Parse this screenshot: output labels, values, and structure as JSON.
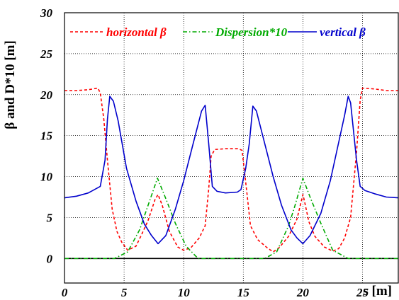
{
  "chart_data": {
    "type": "line",
    "xlabel": "s [m]",
    "ylabel": "β and D*10 [m]",
    "xlim": [
      0,
      28
    ],
    "ylim": [
      -3,
      30
    ],
    "x_ticks": [
      "0",
      "5",
      "10",
      "15",
      "20",
      "25"
    ],
    "y_ticks": [
      "0",
      "5",
      "10",
      "15",
      "20",
      "25",
      "30"
    ],
    "grid": true,
    "legend_position": "top",
    "series": [
      {
        "name": "horizontal β",
        "color": "#ff0000",
        "dash": "dashed",
        "points": [
          [
            0,
            20.5
          ],
          [
            1,
            20.5
          ],
          [
            2,
            20.6
          ],
          [
            2.8,
            20.8
          ],
          [
            3.0,
            20.2
          ],
          [
            3.3,
            17
          ],
          [
            3.6,
            12
          ],
          [
            4.0,
            6
          ],
          [
            4.4,
            3.3
          ],
          [
            4.8,
            2
          ],
          [
            5.3,
            1.0
          ],
          [
            6.0,
            1.5
          ],
          [
            6.5,
            3.0
          ],
          [
            7.0,
            4.6
          ],
          [
            7.6,
            7.2
          ],
          [
            7.85,
            7.8
          ],
          [
            8.2,
            6.5
          ],
          [
            8.8,
            3.3
          ],
          [
            9.5,
            1.4
          ],
          [
            10.0,
            1.0
          ],
          [
            10.6,
            1.3
          ],
          [
            11.3,
            2.5
          ],
          [
            11.8,
            4.0
          ],
          [
            12.1,
            8.5
          ],
          [
            12.3,
            12.5
          ],
          [
            12.6,
            13.3
          ],
          [
            13.5,
            13.4
          ],
          [
            14.6,
            13.4
          ],
          [
            14.9,
            13.2
          ],
          [
            15.3,
            8.0
          ],
          [
            15.6,
            4.0
          ],
          [
            16.2,
            2.3
          ],
          [
            17.0,
            1.3
          ],
          [
            17.5,
            0.8
          ],
          [
            18.0,
            1.3
          ],
          [
            18.8,
            2.7
          ],
          [
            19.5,
            4.8
          ],
          [
            20.0,
            7.8
          ],
          [
            20.1,
            7.2
          ],
          [
            20.5,
            4.5
          ],
          [
            21.0,
            2.7
          ],
          [
            21.8,
            1.4
          ],
          [
            22.5,
            0.9
          ],
          [
            23.0,
            1.2
          ],
          [
            23.5,
            2.5
          ],
          [
            24.0,
            5.0
          ],
          [
            24.5,
            13.0
          ],
          [
            24.8,
            19.3
          ],
          [
            25.0,
            20.8
          ],
          [
            26,
            20.7
          ],
          [
            27,
            20.5
          ],
          [
            28,
            20.5
          ]
        ]
      },
      {
        "name": "Dispersion*10",
        "color": "#00aa00",
        "dash": "dashdot",
        "points": [
          [
            0,
            0
          ],
          [
            4.2,
            0
          ],
          [
            5.3,
            0.8
          ],
          [
            6.3,
            3.5
          ],
          [
            7.8,
            9.8
          ],
          [
            8.5,
            7.3
          ],
          [
            9.3,
            4.3
          ],
          [
            10.2,
            1.5
          ],
          [
            11.2,
            0
          ],
          [
            16.8,
            0
          ],
          [
            17.8,
            0.8
          ],
          [
            18.8,
            4.0
          ],
          [
            19.3,
            6.3
          ],
          [
            20.0,
            9.8
          ],
          [
            20.6,
            7.5
          ],
          [
            21.5,
            4.3
          ],
          [
            22.5,
            1.0
          ],
          [
            23.8,
            0
          ],
          [
            28,
            0
          ]
        ]
      },
      {
        "name": "vertical β",
        "color": "#0000cc",
        "dash": "solid",
        "points": [
          [
            0,
            7.4
          ],
          [
            1,
            7.6
          ],
          [
            2,
            8.0
          ],
          [
            3.0,
            8.8
          ],
          [
            3.4,
            12
          ],
          [
            3.6,
            17
          ],
          [
            3.8,
            19.8
          ],
          [
            4.1,
            19.2
          ],
          [
            4.5,
            16.8
          ],
          [
            5.2,
            11
          ],
          [
            6.0,
            7.0
          ],
          [
            6.7,
            4.2
          ],
          [
            7.3,
            2.8
          ],
          [
            7.85,
            1.8
          ],
          [
            8.5,
            2.8
          ],
          [
            9.3,
            6.0
          ],
          [
            10.0,
            9.5
          ],
          [
            10.7,
            13.5
          ],
          [
            11.5,
            18.0
          ],
          [
            11.8,
            18.7
          ],
          [
            12.1,
            14.0
          ],
          [
            12.4,
            8.8
          ],
          [
            12.8,
            8.2
          ],
          [
            13.5,
            8.0
          ],
          [
            14.5,
            8.1
          ],
          [
            14.8,
            8.4
          ],
          [
            15.2,
            11.0
          ],
          [
            15.5,
            14.0
          ],
          [
            15.8,
            18.6
          ],
          [
            16.1,
            18.0
          ],
          [
            16.8,
            14.0
          ],
          [
            17.5,
            10.0
          ],
          [
            18.2,
            6.5
          ],
          [
            19.0,
            3.5
          ],
          [
            19.5,
            2.5
          ],
          [
            20.0,
            1.8
          ],
          [
            20.6,
            2.8
          ],
          [
            21.5,
            5.5
          ],
          [
            22.3,
            9.5
          ],
          [
            22.9,
            13.5
          ],
          [
            23.5,
            17.5
          ],
          [
            23.8,
            19.8
          ],
          [
            24.0,
            19.0
          ],
          [
            24.5,
            12.0
          ],
          [
            24.8,
            8.8
          ],
          [
            25.2,
            8.3
          ],
          [
            26.0,
            7.9
          ],
          [
            27.0,
            7.5
          ],
          [
            28,
            7.4
          ]
        ]
      }
    ]
  }
}
